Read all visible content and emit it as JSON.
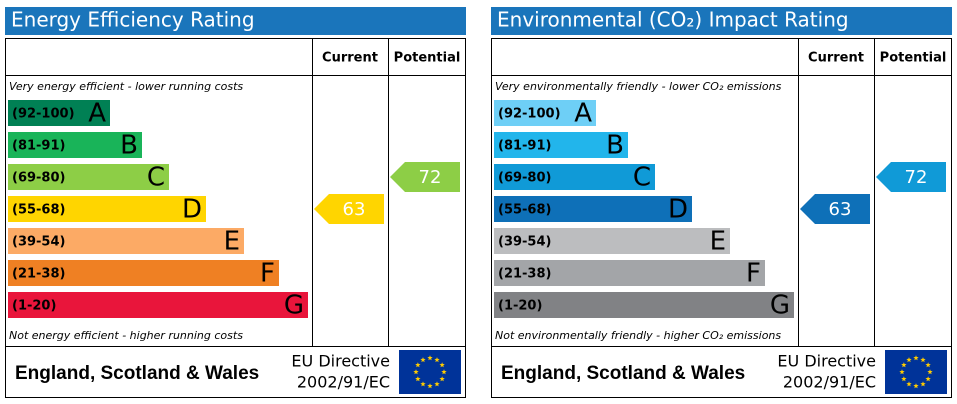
{
  "panels": [
    {
      "title": "Energy Efficiency Rating",
      "headers": [
        "Current",
        "Potential"
      ],
      "top_note": "Very energy efficient - lower running costs",
      "bottom_note": "Not energy efficient - higher running costs",
      "bands": [
        {
          "range": "(92-100)",
          "letter": "A",
          "color": "#008054"
        },
        {
          "range": "(81-91)",
          "letter": "B",
          "color": "#19b459"
        },
        {
          "range": "(69-80)",
          "letter": "C",
          "color": "#8dce46"
        },
        {
          "range": "(55-68)",
          "letter": "D",
          "color": "#ffd500"
        },
        {
          "range": "(39-54)",
          "letter": "E",
          "color": "#fcaa65"
        },
        {
          "range": "(21-38)",
          "letter": "F",
          "color": "#ef8023"
        },
        {
          "range": "(1-20)",
          "letter": "G",
          "color": "#e9153b"
        }
      ],
      "current": 63,
      "potential": 72,
      "footer": {
        "region": "England, Scotland & Wales",
        "directive": "EU Directive",
        "code": "2002/91/EC"
      }
    },
    {
      "title": "Environmental (CO₂) Impact Rating",
      "headers": [
        "Current",
        "Potential"
      ],
      "top_note": "Very environmentally friendly - lower CO₂ emissions",
      "bottom_note": "Not environmentally friendly - higher CO₂ emissions",
      "bands": [
        {
          "range": "(92-100)",
          "letter": "A",
          "color": "#6ecff6"
        },
        {
          "range": "(81-91)",
          "letter": "B",
          "color": "#22b5eb"
        },
        {
          "range": "(69-80)",
          "letter": "C",
          "color": "#109ad7"
        },
        {
          "range": "(55-68)",
          "letter": "D",
          "color": "#0e70b8"
        },
        {
          "range": "(39-54)",
          "letter": "E",
          "color": "#bcbdbf"
        },
        {
          "range": "(21-38)",
          "letter": "F",
          "color": "#a3a5a8"
        },
        {
          "range": "(1-20)",
          "letter": "G",
          "color": "#818285"
        }
      ],
      "current": 63,
      "potential": 72,
      "footer": {
        "region": "England, Scotland & Wales",
        "directive": "EU Directive",
        "code": "2002/91/EC"
      }
    }
  ]
}
